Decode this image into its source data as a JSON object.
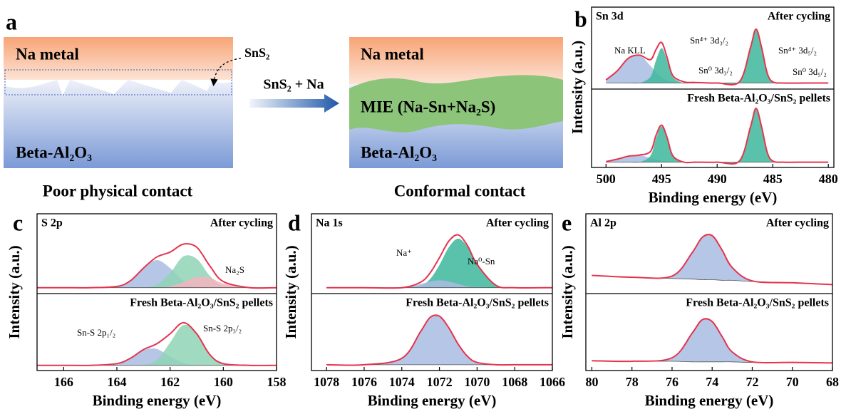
{
  "panel_a": {
    "label": "a",
    "left": {
      "top": "Na metal",
      "bottom": "Beta-Al₂O₃",
      "callout": "SnS₂",
      "caption": "Poor physical contact"
    },
    "arrow": "SnS₂ + Na",
    "right": {
      "top": "Na metal",
      "middle": "MIE (Na-Sn+Na₂S)",
      "bottom": "Beta-Al₂O₃",
      "caption": "Conformal contact"
    }
  },
  "chart_data": [
    {
      "type": "line",
      "label": "b",
      "element": "Sn 3d",
      "xlabel": "Binding energy (eV)",
      "ylabel": "Intensity (a.u.)",
      "fit_color": "#e5344e",
      "xlim": [
        501.3,
        479.5
      ],
      "xticks": [
        500,
        495,
        490,
        485,
        480
      ],
      "x": [
        500,
        499,
        498,
        497,
        496,
        495.5,
        495,
        494.5,
        494,
        493,
        492,
        490,
        488,
        487,
        486.5,
        486,
        485.5,
        485,
        484,
        482,
        480
      ],
      "subplots": [
        {
          "title": "After cycling",
          "baseline": [
            0.05,
            0.05,
            0.05,
            0.05,
            0.05,
            0.05,
            0.05,
            0.05,
            0.05,
            0.05,
            0.05,
            0.05,
            0.05,
            0.05,
            0.05,
            0.05,
            0.05,
            0.05,
            0.05,
            0.05,
            0.05
          ],
          "fit": [
            0.1,
            0.24,
            0.44,
            0.49,
            0.42,
            0.58,
            0.69,
            0.45,
            0.17,
            0.07,
            0.06,
            0.05,
            0.07,
            0.61,
            0.9,
            0.61,
            0.21,
            0.07,
            0.05,
            0.05,
            0.05
          ],
          "components": [
            {
              "color": "#a9bce3",
              "values": [
                0.05,
                0.19,
                0.39,
                0.44,
                0.27,
                0.17,
                0.09,
                0.04,
                0.02,
                0,
                0,
                0,
                0,
                0,
                0,
                0,
                0,
                0,
                0,
                0,
                0
              ]
            },
            {
              "color": "#3db79b",
              "values": [
                0,
                0,
                0,
                0,
                0.1,
                0.36,
                0.55,
                0.36,
                0.1,
                0,
                0,
                0,
                0,
                0,
                0,
                0,
                0,
                0,
                0,
                0,
                0
              ]
            },
            {
              "color": "#3db79b",
              "values": [
                0,
                0,
                0,
                0,
                0,
                0,
                0,
                0,
                0,
                0,
                0,
                0,
                0.02,
                0.56,
                0.85,
                0.56,
                0.16,
                0.02,
                0,
                0,
                0
              ]
            }
          ],
          "annotations": [
            "Na KLL",
            "Sn⁴⁺ 3d₃/₂",
            "Sn⁰ 3d₃/₂",
            "Sn⁴⁺ 3d₅/₂",
            "Sn⁰ 3d₅/₂"
          ]
        },
        {
          "title": "Fresh Beta-Al₂O₃/SnS₂ pellets",
          "baseline": [
            0.04,
            0.04,
            0.04,
            0.04,
            0.04,
            0.04,
            0.04,
            0.04,
            0.04,
            0.04,
            0.04,
            0.04,
            0.04,
            0.04,
            0.04,
            0.04,
            0.04,
            0.04,
            0.04,
            0.04,
            0.04
          ],
          "fit": [
            0.05,
            0.09,
            0.14,
            0.16,
            0.22,
            0.49,
            0.66,
            0.45,
            0.15,
            0.04,
            0.04,
            0.04,
            0.06,
            0.63,
            0.94,
            0.63,
            0.21,
            0.06,
            0.04,
            0.04,
            0.04
          ],
          "components": [
            {
              "color": "#a9bce3",
              "values": [
                0.01,
                0.05,
                0.1,
                0.12,
                0.07,
                0.05,
                0.02,
                0.01,
                0,
                0,
                0,
                0,
                0,
                0,
                0,
                0,
                0,
                0,
                0,
                0,
                0
              ]
            },
            {
              "color": "#3db79b",
              "values": [
                0,
                0,
                0,
                0,
                0.11,
                0.4,
                0.6,
                0.4,
                0.11,
                0,
                0,
                0,
                0,
                0,
                0,
                0,
                0,
                0,
                0,
                0,
                0
              ]
            },
            {
              "color": "#3db79b",
              "values": [
                0,
                0,
                0,
                0,
                0,
                0,
                0,
                0,
                0,
                0,
                0,
                0,
                0.02,
                0.59,
                0.9,
                0.59,
                0.17,
                0.02,
                0,
                0,
                0
              ]
            }
          ],
          "annotations": []
        }
      ]
    },
    {
      "type": "line",
      "label": "c",
      "element": "S 2p",
      "xlabel": "Binding energy (eV)",
      "ylabel": "Intensity (a.u.)",
      "fit_color": "#e5344e",
      "xlim": [
        167,
        158
      ],
      "xticks": [
        166,
        164,
        162,
        160,
        158
      ],
      "x": [
        167,
        166,
        165,
        164,
        163.5,
        163,
        162.5,
        162,
        161.5,
        161,
        160.5,
        160,
        159,
        158
      ],
      "subplots": [
        {
          "title": "After cycling",
          "baseline": [
            0.05,
            0.05,
            0.05,
            0.05,
            0.05,
            0.05,
            0.05,
            0.05,
            0.05,
            0.05,
            0.05,
            0.05,
            0.05,
            0.05
          ],
          "fit": [
            0.05,
            0.05,
            0.05,
            0.07,
            0.16,
            0.37,
            0.55,
            0.63,
            0.76,
            0.71,
            0.4,
            0.15,
            0.05,
            0.05
          ],
          "components": [
            {
              "color": "#a9bce3",
              "values": [
                0,
                0,
                0,
                0.02,
                0.11,
                0.32,
                0.45,
                0.32,
                0.11,
                0.02,
                0,
                0,
                0,
                0
              ]
            },
            {
              "color": "#8fd3b6",
              "values": [
                0,
                0,
                0,
                0,
                0,
                0,
                0.05,
                0.24,
                0.51,
                0.47,
                0.19,
                0.03,
                0,
                0
              ]
            },
            {
              "color": "#f6b3bf",
              "values": [
                0,
                0,
                0,
                0,
                0,
                0,
                0,
                0.02,
                0.09,
                0.17,
                0.16,
                0.07,
                0,
                0
              ]
            }
          ],
          "annotations": [
            "Na₂S"
          ]
        },
        {
          "title": "Fresh Beta-Al₂O₃/SnS₂ pellets",
          "baseline": [
            0.04,
            0.04,
            0.04,
            0.04,
            0.04,
            0.04,
            0.04,
            0.04,
            0.04,
            0.04,
            0.04,
            0.04,
            0.04,
            0.04
          ],
          "fit": [
            0.04,
            0.04,
            0.04,
            0.07,
            0.16,
            0.31,
            0.41,
            0.58,
            0.77,
            0.58,
            0.22,
            0.07,
            0.04,
            0.04
          ],
          "components": [
            {
              "color": "#a9bce3",
              "values": [
                0,
                0,
                0,
                0.03,
                0.12,
                0.26,
                0.28,
                0.15,
                0.04,
                0,
                0,
                0,
                0,
                0
              ]
            },
            {
              "color": "#8fd3b6",
              "values": [
                0,
                0,
                0,
                0,
                0,
                0.01,
                0.09,
                0.39,
                0.69,
                0.54,
                0.18,
                0.03,
                0,
                0
              ]
            }
          ],
          "annotations": [
            "Sn-S 2p₁/₂",
            "Sn-S 2p₃/₂"
          ]
        }
      ]
    },
    {
      "type": "line",
      "label": "d",
      "element": "Na 1s",
      "xlabel": "Binding energy (eV)",
      "ylabel": "Intensity (a.u.)",
      "fit_color": "#e5344e",
      "xlim": [
        1078.8,
        1066
      ],
      "xticks": [
        1078,
        1076,
        1074,
        1072,
        1070,
        1068,
        1066
      ],
      "x": [
        1078,
        1076,
        1074,
        1073,
        1072.5,
        1072,
        1071.5,
        1071,
        1070.5,
        1070,
        1069,
        1068,
        1066
      ],
      "subplots": [
        {
          "title": "After cycling",
          "baseline": [
            0.05,
            0.05,
            0.05,
            0.05,
            0.05,
            0.05,
            0.05,
            0.05,
            0.05,
            0.05,
            0.05,
            0.05,
            0.05
          ],
          "fit": [
            0.05,
            0.05,
            0.05,
            0.14,
            0.29,
            0.54,
            0.81,
            0.91,
            0.73,
            0.43,
            0.09,
            0.05,
            0.05
          ],
          "components": [
            {
              "color": "#3db79b",
              "values": [
                0,
                0,
                0,
                0.04,
                0.14,
                0.37,
                0.66,
                0.8,
                0.66,
                0.37,
                0.04,
                0,
                0
              ]
            },
            {
              "color": "#a9bce3",
              "values": [
                0,
                0,
                0,
                0.06,
                0.1,
                0.12,
                0.1,
                0.06,
                0.02,
                0.01,
                0,
                0,
                0
              ]
            }
          ],
          "annotations": [
            "Na⁺",
            "Na⁰-Sn"
          ]
        },
        {
          "title": "Fresh Beta-Al₂O₃/SnS₂ pellets",
          "baseline": [
            0.05,
            0.05,
            0.05,
            0.05,
            0.05,
            0.05,
            0.05,
            0.05,
            0.05,
            0.05,
            0.05,
            0.05,
            0.05
          ],
          "fit": [
            0.05,
            0.05,
            0.16,
            0.62,
            0.86,
            0.88,
            0.68,
            0.4,
            0.19,
            0.09,
            0.05,
            0.05,
            0.05
          ],
          "components": [
            {
              "color": "#a9bce3",
              "values": [
                0,
                0,
                0.11,
                0.57,
                0.81,
                0.83,
                0.63,
                0.35,
                0.14,
                0.04,
                0,
                0,
                0
              ]
            }
          ],
          "annotations": []
        }
      ]
    },
    {
      "type": "line",
      "label": "e",
      "element": "Al 2p",
      "xlabel": "Binding energy (eV)",
      "ylabel": "Intensity (a.u.)",
      "fit_color": "#e5344e",
      "xlim": [
        80.3,
        68
      ],
      "xticks": [
        80,
        78,
        76,
        74,
        72,
        70,
        68
      ],
      "x": [
        80,
        78,
        76,
        75,
        74.5,
        74,
        73.5,
        73,
        72,
        70,
        68
      ],
      "subplots": [
        {
          "title": "After cycling",
          "baseline": [
            0.25,
            0.22,
            0.2,
            0.19,
            0.18,
            0.18,
            0.17,
            0.17,
            0.15,
            0.13,
            0.1
          ],
          "fit": [
            0.25,
            0.22,
            0.24,
            0.62,
            0.87,
            0.9,
            0.66,
            0.38,
            0.16,
            0.13,
            0.1
          ],
          "components": [
            {
              "color": "#a9bce3",
              "values": [
                0,
                0,
                0.04,
                0.43,
                0.69,
                0.72,
                0.49,
                0.21,
                0.01,
                0,
                0
              ]
            }
          ],
          "annotations": []
        },
        {
          "title": "Fresh Beta-Al₂O₃/SnS₂ pellets",
          "baseline": [
            0.12,
            0.11,
            0.11,
            0.1,
            0.1,
            0.1,
            0.1,
            0.1,
            0.09,
            0.09,
            0.08
          ],
          "fit": [
            0.12,
            0.11,
            0.17,
            0.59,
            0.82,
            0.79,
            0.53,
            0.27,
            0.1,
            0.09,
            0.08
          ],
          "components": [
            {
              "color": "#a9bce3",
              "values": [
                0,
                0,
                0.06,
                0.49,
                0.72,
                0.69,
                0.43,
                0.17,
                0.01,
                0,
                0
              ]
            }
          ],
          "annotations": []
        }
      ]
    }
  ]
}
